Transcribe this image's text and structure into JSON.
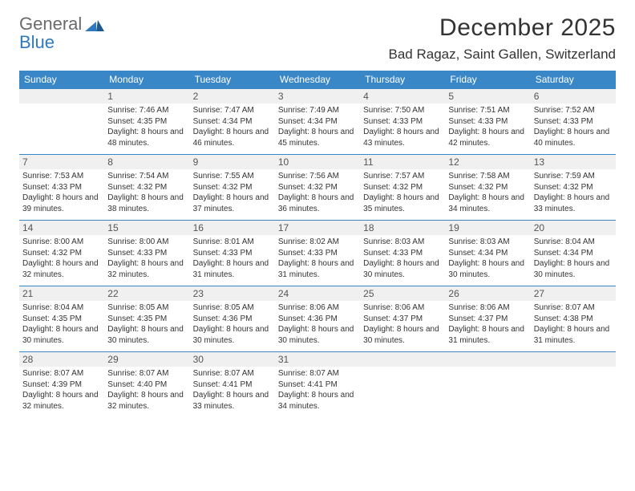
{
  "logo": {
    "line1": "General",
    "line2": "Blue",
    "mark_color": "#2f7abf"
  },
  "title": "December 2025",
  "location": "Bad Ragaz, Saint Gallen, Switzerland",
  "accent_color": "#3a87c7",
  "header_bg": "#f0f0f0",
  "weekdays": [
    "Sunday",
    "Monday",
    "Tuesday",
    "Wednesday",
    "Thursday",
    "Friday",
    "Saturday"
  ],
  "weeks": [
    [
      {
        "n": "",
        "sr": "",
        "ss": "",
        "dl": ""
      },
      {
        "n": "1",
        "sr": "Sunrise: 7:46 AM",
        "ss": "Sunset: 4:35 PM",
        "dl": "Daylight: 8 hours and 48 minutes."
      },
      {
        "n": "2",
        "sr": "Sunrise: 7:47 AM",
        "ss": "Sunset: 4:34 PM",
        "dl": "Daylight: 8 hours and 46 minutes."
      },
      {
        "n": "3",
        "sr": "Sunrise: 7:49 AM",
        "ss": "Sunset: 4:34 PM",
        "dl": "Daylight: 8 hours and 45 minutes."
      },
      {
        "n": "4",
        "sr": "Sunrise: 7:50 AM",
        "ss": "Sunset: 4:33 PM",
        "dl": "Daylight: 8 hours and 43 minutes."
      },
      {
        "n": "5",
        "sr": "Sunrise: 7:51 AM",
        "ss": "Sunset: 4:33 PM",
        "dl": "Daylight: 8 hours and 42 minutes."
      },
      {
        "n": "6",
        "sr": "Sunrise: 7:52 AM",
        "ss": "Sunset: 4:33 PM",
        "dl": "Daylight: 8 hours and 40 minutes."
      }
    ],
    [
      {
        "n": "7",
        "sr": "Sunrise: 7:53 AM",
        "ss": "Sunset: 4:33 PM",
        "dl": "Daylight: 8 hours and 39 minutes."
      },
      {
        "n": "8",
        "sr": "Sunrise: 7:54 AM",
        "ss": "Sunset: 4:32 PM",
        "dl": "Daylight: 8 hours and 38 minutes."
      },
      {
        "n": "9",
        "sr": "Sunrise: 7:55 AM",
        "ss": "Sunset: 4:32 PM",
        "dl": "Daylight: 8 hours and 37 minutes."
      },
      {
        "n": "10",
        "sr": "Sunrise: 7:56 AM",
        "ss": "Sunset: 4:32 PM",
        "dl": "Daylight: 8 hours and 36 minutes."
      },
      {
        "n": "11",
        "sr": "Sunrise: 7:57 AM",
        "ss": "Sunset: 4:32 PM",
        "dl": "Daylight: 8 hours and 35 minutes."
      },
      {
        "n": "12",
        "sr": "Sunrise: 7:58 AM",
        "ss": "Sunset: 4:32 PM",
        "dl": "Daylight: 8 hours and 34 minutes."
      },
      {
        "n": "13",
        "sr": "Sunrise: 7:59 AM",
        "ss": "Sunset: 4:32 PM",
        "dl": "Daylight: 8 hours and 33 minutes."
      }
    ],
    [
      {
        "n": "14",
        "sr": "Sunrise: 8:00 AM",
        "ss": "Sunset: 4:32 PM",
        "dl": "Daylight: 8 hours and 32 minutes."
      },
      {
        "n": "15",
        "sr": "Sunrise: 8:00 AM",
        "ss": "Sunset: 4:33 PM",
        "dl": "Daylight: 8 hours and 32 minutes."
      },
      {
        "n": "16",
        "sr": "Sunrise: 8:01 AM",
        "ss": "Sunset: 4:33 PM",
        "dl": "Daylight: 8 hours and 31 minutes."
      },
      {
        "n": "17",
        "sr": "Sunrise: 8:02 AM",
        "ss": "Sunset: 4:33 PM",
        "dl": "Daylight: 8 hours and 31 minutes."
      },
      {
        "n": "18",
        "sr": "Sunrise: 8:03 AM",
        "ss": "Sunset: 4:33 PM",
        "dl": "Daylight: 8 hours and 30 minutes."
      },
      {
        "n": "19",
        "sr": "Sunrise: 8:03 AM",
        "ss": "Sunset: 4:34 PM",
        "dl": "Daylight: 8 hours and 30 minutes."
      },
      {
        "n": "20",
        "sr": "Sunrise: 8:04 AM",
        "ss": "Sunset: 4:34 PM",
        "dl": "Daylight: 8 hours and 30 minutes."
      }
    ],
    [
      {
        "n": "21",
        "sr": "Sunrise: 8:04 AM",
        "ss": "Sunset: 4:35 PM",
        "dl": "Daylight: 8 hours and 30 minutes."
      },
      {
        "n": "22",
        "sr": "Sunrise: 8:05 AM",
        "ss": "Sunset: 4:35 PM",
        "dl": "Daylight: 8 hours and 30 minutes."
      },
      {
        "n": "23",
        "sr": "Sunrise: 8:05 AM",
        "ss": "Sunset: 4:36 PM",
        "dl": "Daylight: 8 hours and 30 minutes."
      },
      {
        "n": "24",
        "sr": "Sunrise: 8:06 AM",
        "ss": "Sunset: 4:36 PM",
        "dl": "Daylight: 8 hours and 30 minutes."
      },
      {
        "n": "25",
        "sr": "Sunrise: 8:06 AM",
        "ss": "Sunset: 4:37 PM",
        "dl": "Daylight: 8 hours and 30 minutes."
      },
      {
        "n": "26",
        "sr": "Sunrise: 8:06 AM",
        "ss": "Sunset: 4:37 PM",
        "dl": "Daylight: 8 hours and 31 minutes."
      },
      {
        "n": "27",
        "sr": "Sunrise: 8:07 AM",
        "ss": "Sunset: 4:38 PM",
        "dl": "Daylight: 8 hours and 31 minutes."
      }
    ],
    [
      {
        "n": "28",
        "sr": "Sunrise: 8:07 AM",
        "ss": "Sunset: 4:39 PM",
        "dl": "Daylight: 8 hours and 32 minutes."
      },
      {
        "n": "29",
        "sr": "Sunrise: 8:07 AM",
        "ss": "Sunset: 4:40 PM",
        "dl": "Daylight: 8 hours and 32 minutes."
      },
      {
        "n": "30",
        "sr": "Sunrise: 8:07 AM",
        "ss": "Sunset: 4:41 PM",
        "dl": "Daylight: 8 hours and 33 minutes."
      },
      {
        "n": "31",
        "sr": "Sunrise: 8:07 AM",
        "ss": "Sunset: 4:41 PM",
        "dl": "Daylight: 8 hours and 34 minutes."
      },
      {
        "n": "",
        "sr": "",
        "ss": "",
        "dl": ""
      },
      {
        "n": "",
        "sr": "",
        "ss": "",
        "dl": ""
      },
      {
        "n": "",
        "sr": "",
        "ss": "",
        "dl": ""
      }
    ]
  ]
}
